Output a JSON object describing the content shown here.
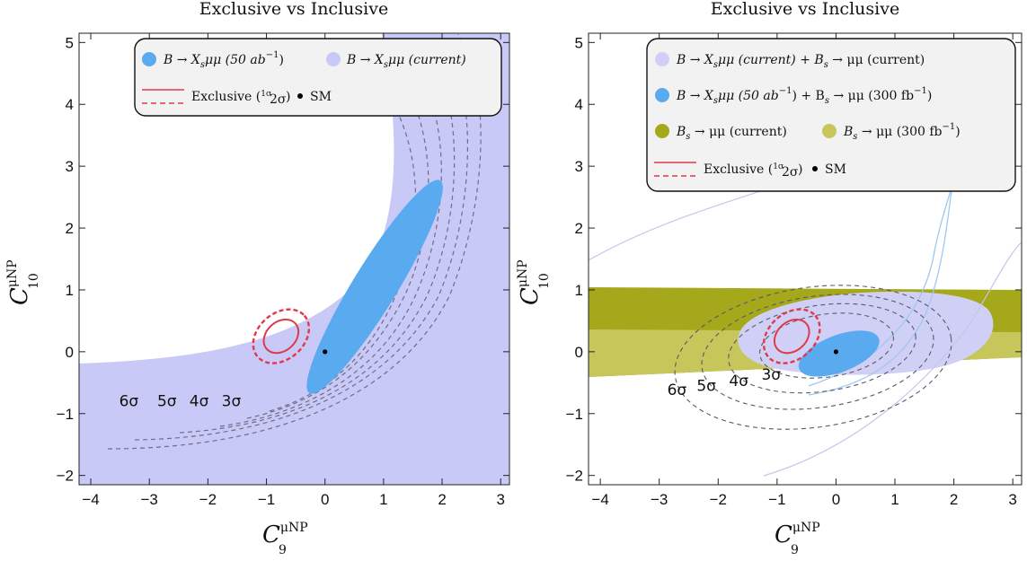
{
  "chart_data": [
    {
      "type": "contour",
      "title": "Exclusive vs Inclusive",
      "xlabel": {
        "main": "C",
        "sub": "9",
        "sup": "μNP"
      },
      "ylabel": {
        "main": "C",
        "sub": "10",
        "sup": "μNP"
      },
      "xlim": [
        -4.2,
        3.15
      ],
      "ylim": [
        -2.15,
        5.15
      ],
      "xticks": [
        "−4",
        "−3",
        "−2",
        "−1",
        "0",
        "1",
        "2",
        "3"
      ],
      "yticks": [
        "−2",
        "−1",
        "0",
        "1",
        "2",
        "3",
        "4",
        "5"
      ],
      "sm_point": {
        "x": 0,
        "y": 0,
        "label": "SM"
      },
      "regions": [
        {
          "name": "B → Xsμμ (current)",
          "color": "#c9c9f7"
        },
        {
          "name": "B → Xsμμ (50 ab⁻¹)",
          "color": "#5aaaf0",
          "center": [
            0.85,
            1.05
          ],
          "semi_axes": [
            2.05,
            0.37
          ],
          "angle_deg": 57
        }
      ],
      "exclusive": {
        "center": [
          -0.75,
          0.25
        ],
        "one_sigma_semi": [
          0.32,
          0.24
        ],
        "two_sigma_semi": [
          0.52,
          0.38
        ],
        "angle_deg": 40,
        "color": "#e03a4a"
      },
      "sigma_labels": [
        {
          "text": "6σ",
          "x": -3.35,
          "y": -0.88
        },
        {
          "text": "5σ",
          "x": -2.7,
          "y": -0.88
        },
        {
          "text": "4σ",
          "x": -2.15,
          "y": -0.88
        },
        {
          "text": "3σ",
          "x": -1.6,
          "y": -0.88
        }
      ],
      "legend": {
        "placement": "top-right",
        "row1": [
          {
            "symbol": "dot-blue",
            "main": "B → X",
            "sub": "s",
            "rest": "μμ (50 ab",
            "sup": "−1",
            "tail": ")"
          },
          {
            "symbol": "dot-lavender",
            "main": "B → X",
            "sub": "s",
            "rest": "μμ (current)"
          }
        ],
        "row2": {
          "exclusive": "Exclusive (",
          "one": "1σ",
          "two": "2σ",
          "close": ")",
          "sm": "SM"
        }
      }
    },
    {
      "type": "contour",
      "title": "Exclusive vs Inclusive",
      "xlabel": {
        "main": "C",
        "sub": "9",
        "sup": "μNP"
      },
      "ylabel": {
        "main": "C",
        "sub": "10",
        "sup": "μNP"
      },
      "xlim": [
        -4.2,
        3.15
      ],
      "ylim": [
        -2.15,
        5.15
      ],
      "xticks": [
        "−4",
        "−3",
        "−2",
        "−1",
        "0",
        "1",
        "2",
        "3"
      ],
      "yticks": [
        "−2",
        "−1",
        "0",
        "1",
        "2",
        "3",
        "4",
        "5"
      ],
      "sm_point": {
        "x": 0,
        "y": 0,
        "label": "SM"
      },
      "regions": [
        {
          "name": "Bs → μμ (current)",
          "color": "#a5a81a",
          "band_y": [
            -0.35,
            1.05
          ]
        },
        {
          "name": "Bs → μμ (300 fb⁻¹)",
          "color": "#c7c65a"
        },
        {
          "name": "B → Xsμμ (current) + Bs → μμ (current)",
          "color": "#d0d0f6"
        },
        {
          "name": "B → Xsμμ (50 ab⁻¹) + Bs → μμ (300 fb⁻¹)",
          "color": "#5aaaf0",
          "center": [
            0.05,
            -0.03
          ],
          "semi_axes": [
            0.72,
            0.3
          ],
          "angle_deg": 20
        }
      ],
      "exclusive": {
        "center": [
          -0.75,
          0.25
        ],
        "one_sigma_semi": [
          0.32,
          0.24
        ],
        "two_sigma_semi": [
          0.52,
          0.38
        ],
        "angle_deg": 40,
        "color": "#e03a4a"
      },
      "sigma_labels": [
        {
          "text": "6σ",
          "x": -2.7,
          "y": -0.7
        },
        {
          "text": "5σ",
          "x": -2.2,
          "y": -0.63
        },
        {
          "text": "4σ",
          "x": -1.65,
          "y": -0.55
        },
        {
          "text": "3σ",
          "x": -1.1,
          "y": -0.45
        }
      ],
      "legend": {
        "placement": "top",
        "rows": [
          {
            "symbol": "dot-lavender",
            "text_a": "B → X",
            "sub_a": "s",
            "text_b": "μμ (current) + B",
            "sub_b": "s",
            "text_c": " → μμ (current)"
          },
          {
            "symbol": "dot-blue",
            "text_a": "B → X",
            "sub_a": "s",
            "text_b": "μμ (50 ab",
            "sup": "−1",
            "text_b2": ") + B",
            "sub_b": "s",
            "text_c": " → μμ (300 fb",
            "sup2": "−1",
            "tail": ")"
          },
          {
            "items": [
              {
                "symbol": "dot-olive",
                "text_a": "B",
                "sub_a": "s",
                "text_b": " → μμ (current)"
              },
              {
                "symbol": "dot-lightolive",
                "text_a": "B",
                "sub_a": "s",
                "text_b": " → μμ (300 fb",
                "sup": "−1",
                "tail": ")"
              }
            ]
          }
        ],
        "row_excl": {
          "exclusive": "Exclusive (",
          "one": "1σ",
          "two": "2σ",
          "close": ")",
          "sm": "SM"
        }
      }
    }
  ]
}
